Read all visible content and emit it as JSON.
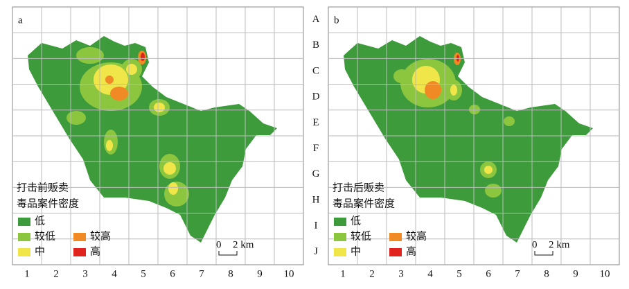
{
  "panels": [
    {
      "label": "a",
      "legend_title": [
        "打击前贩卖",
        "毒品案件密度"
      ]
    },
    {
      "label": "b",
      "legend_title": [
        "打击后贩卖",
        "毒品案件密度"
      ]
    }
  ],
  "row_labels": [
    "A",
    "B",
    "C",
    "D",
    "E",
    "F",
    "G",
    "H",
    "I",
    "J"
  ],
  "column_labels": [
    "1",
    "2",
    "3",
    "4",
    "5",
    "6",
    "7",
    "8",
    "9",
    "10"
  ],
  "legend": {
    "low": "低",
    "lower": "较低",
    "higher": "较高",
    "middle": "中",
    "high": "高"
  },
  "scale_bar": {
    "start": "0",
    "end": "2 km"
  }
}
